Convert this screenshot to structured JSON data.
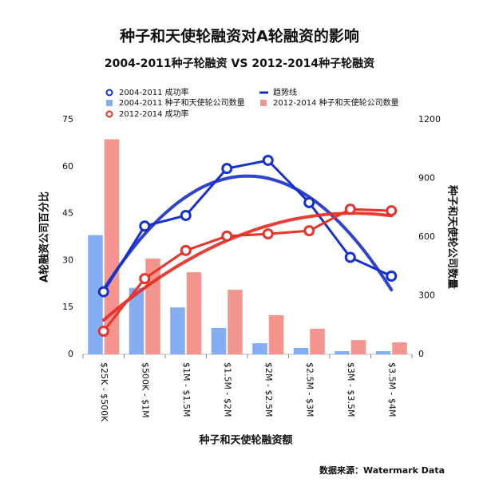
{
  "chart_data": {
    "type": "bar",
    "title": "种子和天使轮融资对A轮融资的影响",
    "subtitle": "2004-2011种子轮融资 VS 2012-2014种子轮融资",
    "x_label": "种子和天使轮融资额",
    "y_label": "A轮融资公司百分比",
    "y2_label": "种子和天使轮公司数量",
    "source": "数据来源：Watermark Data",
    "categories": [
      "$25K - $500K",
      "$500K - $1M",
      "$1M - $1.5M",
      "$1.5M - $2M",
      "$2M - $2.5M",
      "$2.5M - $3M",
      "$3M - $3.5M",
      "$3.5M - $4M"
    ],
    "ylim": [
      0,
      75
    ],
    "yticks": [
      0,
      15,
      30,
      45,
      60,
      75
    ],
    "y2lim": [
      0,
      1200
    ],
    "y2ticks": [
      0,
      300,
      600,
      900,
      1200
    ],
    "grid": false,
    "trendline": {
      "name": "趋势线",
      "color": "#1a2fc8"
    },
    "series": [
      {
        "name": "2004-2011 成功率",
        "type": "line",
        "axis": "y",
        "color": "#1530d0",
        "trend_color": "#1a2fc8",
        "values": [
          20,
          41,
          44.4,
          59.4,
          62,
          48.5,
          31,
          25
        ]
      },
      {
        "name": "2004-2011 种子和天使轮公司数量",
        "type": "bar",
        "axis": "y2",
        "color": "#85aef2",
        "values": [
          610,
          340,
          240,
          135,
          57,
          33,
          16,
          16
        ]
      },
      {
        "name": "2012-2014 种子和天使轮公司数量",
        "type": "bar",
        "axis": "y2",
        "color": "#f4948f",
        "values": [
          1100,
          490,
          420,
          330,
          200,
          131,
          73,
          61
        ]
      },
      {
        "name": "2012-2014 成功率",
        "type": "line",
        "axis": "y",
        "color": "#e8322a",
        "trend_color": "#e5291f",
        "values": [
          7.4,
          24.2,
          33.2,
          37.8,
          38.5,
          39.5,
          46.4,
          45.9
        ]
      }
    ]
  }
}
